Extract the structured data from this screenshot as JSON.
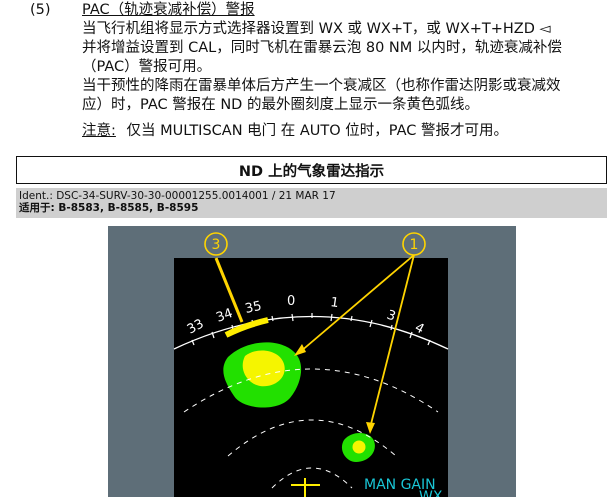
{
  "item": {
    "number": "(5)",
    "title": "PAC（轨迹衰减补偿）警报",
    "para1_lines": [
      "当飞行机组将显示方式选择器设置到 WX 或 WX+T，或 WX+T+HZD ◅",
      "并将增益设置到 CAL，同时飞机在雷暴云泡 80 NM 以内时，轨迹衰减补偿",
      "（PAC）警报可用。"
    ],
    "para2_lines": [
      "当干预性的降雨在雷暴单体后方产生一个衰减区（也称作雷达阴影或衰减效",
      "应）时，PAC 警报在 ND 的最外圈刻度上显示一条黄色弧线。"
    ],
    "note_label": "注意:",
    "note_text": "仅当 MULTISCAN 电门 在 AUTO 位时，PAC 警报才可用。"
  },
  "section": {
    "title": "ND 上的气象雷达指示",
    "ident": "Ident.: DSC-34-SURV-30-30-00001255.0014001 / 21 MAR 17",
    "applies": "适用于: B-8583, B-8585, B-8595"
  },
  "figure": {
    "callout_3": "3",
    "callout_1": "1",
    "compass_labels": [
      "33",
      "34",
      "35",
      "0",
      "1",
      "3",
      "4"
    ],
    "gain_label": "MAN GAIN",
    "mode_label": "WX",
    "colors": {
      "frame": "#5e6e78",
      "screen": "#000000",
      "green": "#22e000",
      "yellow": "#f5f500",
      "magenta": "#ff00cc",
      "pac_arc": "#ffee00",
      "callout": "#ffd400",
      "cyan": "#19c6d6"
    }
  }
}
